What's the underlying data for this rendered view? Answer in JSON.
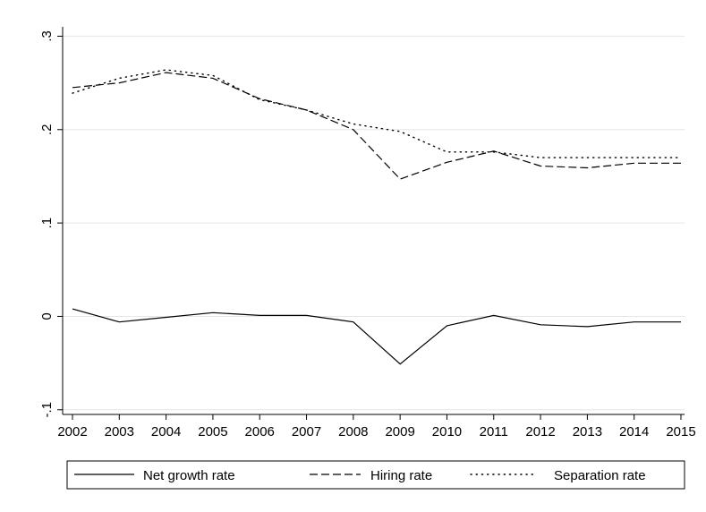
{
  "chart_data": {
    "type": "line",
    "x": [
      2002,
      2003,
      2004,
      2005,
      2006,
      2007,
      2008,
      2009,
      2010,
      2011,
      2012,
      2013,
      2014,
      2015
    ],
    "x_tick_labels": [
      "2002",
      "2003",
      "2004",
      "2005",
      "2006",
      "2007",
      "2008",
      "2009",
      "2010",
      "2011",
      "2012",
      "2013",
      "2014",
      "2015"
    ],
    "y_ticks": [
      -0.1,
      0,
      0.1,
      0.2,
      0.3
    ],
    "y_tick_labels": [
      "-.1",
      "0",
      ".1",
      ".2",
      ".3"
    ],
    "ylim": [
      -0.105,
      0.31
    ],
    "xlim": [
      2002,
      2015
    ],
    "title": "",
    "xlabel": "",
    "ylabel": "",
    "grid": "horizontal",
    "legend_position": "bottom",
    "series": [
      {
        "name": "Net growth rate",
        "style": "solid",
        "color": "#000000",
        "values": [
          0.008,
          -0.006,
          -0.001,
          0.004,
          0.001,
          0.001,
          -0.006,
          -0.051,
          -0.01,
          0.001,
          -0.009,
          -0.011,
          -0.006,
          -0.006
        ]
      },
      {
        "name": "Hiring rate",
        "style": "dashed",
        "color": "#000000",
        "values": [
          0.245,
          0.25,
          0.261,
          0.255,
          0.233,
          0.221,
          0.2,
          0.147,
          0.165,
          0.177,
          0.161,
          0.159,
          0.164,
          0.164
        ]
      },
      {
        "name": "Separation rate",
        "style": "dotted",
        "color": "#000000",
        "values": [
          0.239,
          0.255,
          0.264,
          0.258,
          0.232,
          0.221,
          0.206,
          0.198,
          0.176,
          0.176,
          0.17,
          0.17,
          0.17,
          0.17
        ]
      }
    ]
  }
}
